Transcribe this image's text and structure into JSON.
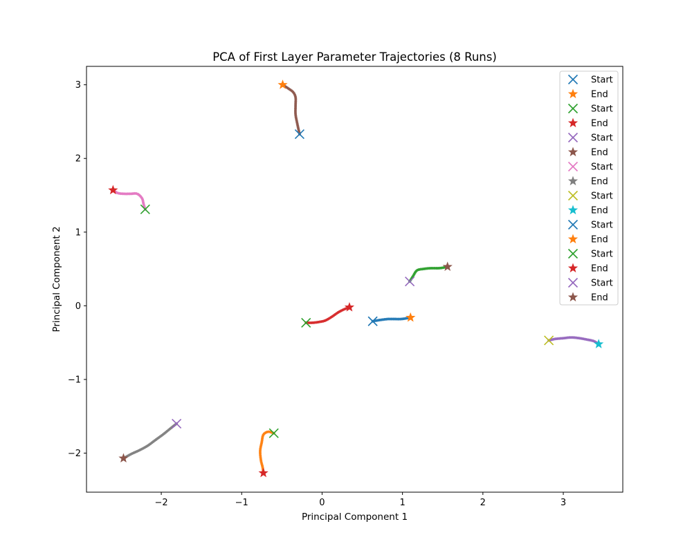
{
  "chart_data": {
    "type": "scatter",
    "title": "PCA of First Layer Parameter Trajectories (8 Runs)",
    "xlabel": "Principal Component 1",
    "ylabel": "Principal Component 2",
    "xlim": [
      -2.93,
      3.74
    ],
    "ylim": [
      -2.53,
      3.25
    ],
    "xticks": [
      -2,
      -1,
      0,
      1,
      2,
      3
    ],
    "yticks": [
      -2,
      -1,
      0,
      1,
      2,
      3
    ],
    "xtick_labels": [
      "−2",
      "−1",
      "0",
      "1",
      "2",
      "3"
    ],
    "ytick_labels": [
      "−2",
      "−1",
      "0",
      "1",
      "2",
      "3"
    ],
    "grid": false,
    "legend_position": "top-right",
    "legend": [
      {
        "label": "Start",
        "marker": "x",
        "color": "#1f77b4"
      },
      {
        "label": "End",
        "marker": "star",
        "color": "#ff7f0e"
      },
      {
        "label": "Start",
        "marker": "x",
        "color": "#2ca02c"
      },
      {
        "label": "End",
        "marker": "star",
        "color": "#d62728"
      },
      {
        "label": "Start",
        "marker": "x",
        "color": "#9467bd"
      },
      {
        "label": "End",
        "marker": "star",
        "color": "#8c564b"
      },
      {
        "label": "Start",
        "marker": "x",
        "color": "#e377c2"
      },
      {
        "label": "End",
        "marker": "star",
        "color": "#7f7f7f"
      },
      {
        "label": "Start",
        "marker": "x",
        "color": "#bcbd22"
      },
      {
        "label": "End",
        "marker": "star",
        "color": "#17becf"
      },
      {
        "label": "Start",
        "marker": "x",
        "color": "#1f77b4"
      },
      {
        "label": "End",
        "marker": "star",
        "color": "#ff7f0e"
      },
      {
        "label": "Start",
        "marker": "x",
        "color": "#2ca02c"
      },
      {
        "label": "End",
        "marker": "star",
        "color": "#d62728"
      },
      {
        "label": "Start",
        "marker": "x",
        "color": "#9467bd"
      },
      {
        "label": "End",
        "marker": "star",
        "color": "#8c564b"
      }
    ],
    "series": [
      {
        "color": "#1f77b4",
        "start_color": "#1f77b4",
        "end_color": "#ff7f0e",
        "x": [
          0.63,
          0.68,
          0.74,
          0.82,
          0.9,
          0.98,
          1.05,
          1.1
        ],
        "y": [
          -0.21,
          -0.2,
          -0.19,
          -0.18,
          -0.18,
          -0.18,
          -0.17,
          -0.16
        ]
      },
      {
        "color": "#d62728",
        "start_color": "#2ca02c",
        "end_color": "#d62728",
        "x": [
          -0.2,
          -0.12,
          -0.04,
          0.04,
          0.12,
          0.2,
          0.27,
          0.34
        ],
        "y": [
          -0.23,
          -0.23,
          -0.22,
          -0.2,
          -0.15,
          -0.09,
          -0.05,
          -0.02
        ]
      },
      {
        "color": "#ff7f0e",
        "start_color": "#2ca02c",
        "end_color": "#d62728",
        "x": [
          -0.6,
          -0.67,
          -0.73,
          -0.75,
          -0.77,
          -0.76,
          -0.74,
          -0.73
        ],
        "y": [
          -1.73,
          -1.71,
          -1.75,
          -1.85,
          -1.97,
          -2.1,
          -2.19,
          -2.27
        ]
      },
      {
        "color": "#8c564b",
        "start_color": "#1f77b4",
        "end_color": "#ff7f0e",
        "x": [
          -0.28,
          -0.31,
          -0.33,
          -0.33,
          -0.33,
          -0.36,
          -0.42,
          -0.49
        ],
        "y": [
          2.33,
          2.48,
          2.6,
          2.72,
          2.83,
          2.9,
          2.95,
          3.0
        ]
      },
      {
        "color": "#e377c2",
        "start_color": "#2ca02c",
        "end_color": "#d62728",
        "x": [
          -2.2,
          -2.22,
          -2.24,
          -2.3,
          -2.38,
          -2.46,
          -2.54,
          -2.6
        ],
        "y": [
          1.31,
          1.38,
          1.46,
          1.52,
          1.52,
          1.52,
          1.53,
          1.57
        ]
      },
      {
        "color": "#2ca02c",
        "start_color": "#9467bd",
        "end_color": "#8c564b",
        "x": [
          1.09,
          1.13,
          1.18,
          1.26,
          1.35,
          1.45,
          1.52,
          1.56
        ],
        "y": [
          0.33,
          0.4,
          0.48,
          0.5,
          0.51,
          0.51,
          0.52,
          0.53
        ]
      },
      {
        "color": "#9467bd",
        "start_color": "#bcbd22",
        "end_color": "#17becf",
        "x": [
          2.82,
          2.9,
          3.0,
          3.1,
          3.2,
          3.3,
          3.38,
          3.44
        ],
        "y": [
          -0.47,
          -0.45,
          -0.44,
          -0.43,
          -0.44,
          -0.46,
          -0.48,
          -0.52
        ]
      },
      {
        "color": "#7f7f7f",
        "start_color": "#9467bd",
        "end_color": "#8c564b",
        "x": [
          -1.81,
          -1.88,
          -1.97,
          -2.07,
          -2.17,
          -2.27,
          -2.37,
          -2.47
        ],
        "y": [
          -1.6,
          -1.66,
          -1.74,
          -1.82,
          -1.9,
          -1.96,
          -2.01,
          -2.07
        ]
      }
    ]
  }
}
